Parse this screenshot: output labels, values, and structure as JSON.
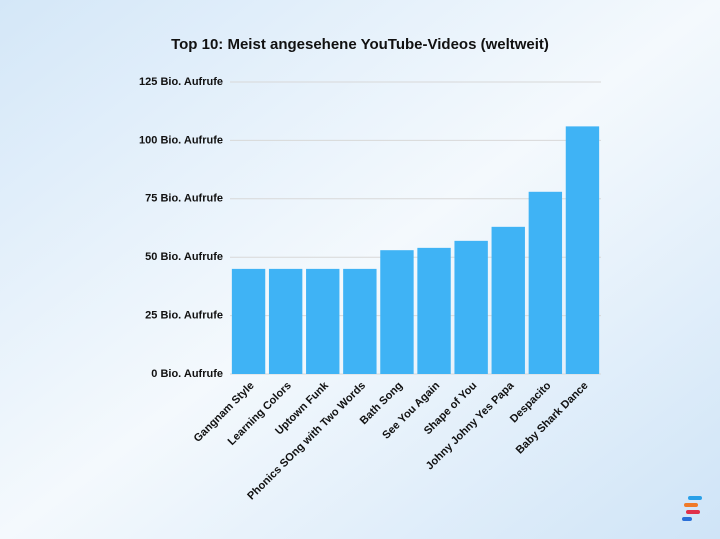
{
  "chart_data": {
    "type": "bar",
    "title": "Top 10: Meist angesehene YouTube-Videos (weltweit)",
    "categories": [
      "Gangnam Style",
      "Learning Colors",
      "Uptown Funk",
      "Phonics SOng with Two Words",
      "Bath Song",
      "See You Again",
      "Shape of You",
      "Johny Johny Yes Papa",
      "Despacito",
      "Baby Shark Dance"
    ],
    "values": [
      45,
      45,
      45,
      45,
      53,
      54,
      57,
      63,
      78,
      106
    ],
    "color": "#3fb3f5",
    "ylim": [
      0,
      125
    ],
    "yticks": [
      {
        "value": 0,
        "label": "0 Bio. Aufrufe"
      },
      {
        "value": 25,
        "label": "25 Bio. Aufrufe"
      },
      {
        "value": 50,
        "label": "50 Bio. Aufrufe"
      },
      {
        "value": 75,
        "label": "75 Bio. Aufrufe"
      },
      {
        "value": 100,
        "label": "100 Bio. Aufrufe"
      },
      {
        "value": 125,
        "label": "125 Bio. Aufrufe"
      }
    ],
    "grid": true
  }
}
